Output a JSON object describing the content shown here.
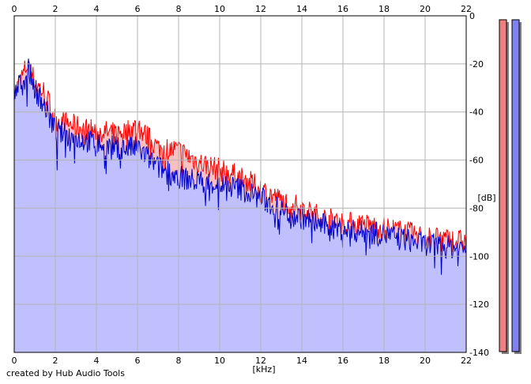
{
  "credit": "created by Hub Audio Tools",
  "colors": {
    "grid": "#b4b4b4",
    "plot_border": "#000000",
    "left_fill": "#f8c0c0",
    "left_line": "#ff0000",
    "right_fill": "#c0c0ff",
    "right_line": "#0000cc",
    "meter_left": "#f08080",
    "meter_right": "#8080f0",
    "meter_shadow": "#808080"
  },
  "chart_data": {
    "type": "area",
    "xlabel": "[kHz]",
    "ylabel": "[dB]",
    "xlim": [
      0,
      22
    ],
    "ylim": [
      -140,
      0
    ],
    "x_ticks": [
      0,
      2,
      4,
      6,
      8,
      10,
      12,
      14,
      16,
      18,
      20,
      22
    ],
    "y_ticks": [
      0,
      -20,
      -40,
      -60,
      -80,
      -100,
      -120,
      -140
    ],
    "x_tick_labels": [
      "0",
      "2",
      "4",
      "6",
      "8",
      "10",
      "12",
      "14",
      "16",
      "18",
      "20",
      "22"
    ],
    "y_tick_labels": [
      "0",
      "-20",
      "-40",
      "-60",
      "-80",
      "-100",
      "-120",
      "-140"
    ],
    "grid": true,
    "legend": "none",
    "series": [
      {
        "color": "#ff0000",
        "fill": "#f8c0c0",
        "x": [
          0,
          0.3,
          0.5,
          0.7,
          1.0,
          1.5,
          2.0,
          3.0,
          4.0,
          5.0,
          6.0,
          7.0,
          8.0,
          9.0,
          10.0,
          11.0,
          12.0,
          13.0,
          14.0,
          15.0,
          16.0,
          17.0,
          18.0,
          19.0,
          20.0,
          21.0,
          22.0
        ],
        "y": [
          -33,
          -27,
          -23,
          -19,
          -28,
          -32,
          -43,
          -46,
          -48,
          -49,
          -46,
          -55,
          -56,
          -61,
          -64,
          -67,
          -72,
          -77,
          -80,
          -84,
          -86,
          -87,
          -88,
          -90,
          -92,
          -93,
          -94
        ]
      },
      {
        "color": "#0000cc",
        "fill": "#c0c0ff",
        "x": [
          0,
          0.3,
          0.5,
          0.7,
          1.0,
          1.5,
          2.0,
          3.0,
          4.0,
          5.0,
          6.0,
          7.0,
          8.0,
          9.0,
          10.0,
          11.0,
          12.0,
          13.0,
          14.0,
          15.0,
          16.0,
          17.0,
          18.0,
          19.0,
          20.0,
          21.0,
          22.0
        ],
        "y": [
          -33,
          -28,
          -26,
          -22,
          -30,
          -38,
          -48,
          -51,
          -53,
          -55,
          -55,
          -63,
          -67,
          -69,
          -70,
          -72,
          -76,
          -81,
          -84,
          -87,
          -89,
          -90,
          -91,
          -93,
          -95,
          -96,
          -97
        ]
      }
    ]
  }
}
